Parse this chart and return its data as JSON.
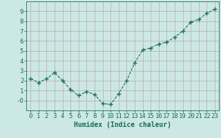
{
  "x": [
    0,
    1,
    2,
    3,
    4,
    5,
    6,
    7,
    8,
    9,
    10,
    11,
    12,
    13,
    14,
    15,
    16,
    17,
    18,
    19,
    20,
    21,
    22,
    23
  ],
  "y": [
    2.2,
    1.8,
    2.2,
    2.8,
    2.0,
    1.1,
    0.5,
    0.9,
    0.6,
    -0.3,
    -0.4,
    0.7,
    2.0,
    3.8,
    5.1,
    5.3,
    5.7,
    5.9,
    6.4,
    7.0,
    7.9,
    8.2,
    8.8,
    9.2
  ],
  "xlabel": "Humidex (Indice chaleur)",
  "ylim": [
    -1,
    10
  ],
  "xlim": [
    -0.5,
    23.5
  ],
  "yticks": [
    0,
    1,
    2,
    3,
    4,
    5,
    6,
    7,
    8,
    9
  ],
  "ytick_labels": [
    "-0",
    "1",
    "2",
    "3",
    "4",
    "5",
    "6",
    "7",
    "8",
    "9"
  ],
  "xticks": [
    0,
    1,
    2,
    3,
    4,
    5,
    6,
    7,
    8,
    9,
    10,
    11,
    12,
    13,
    14,
    15,
    16,
    17,
    18,
    19,
    20,
    21,
    22,
    23
  ],
  "line_color": "#1a6b5a",
  "marker": "+",
  "bg_color": "#cce8e4",
  "grid_color": "#b8a8a8",
  "axis_color": "#1a6b5a",
  "tick_label_color": "#1a6b5a",
  "xlabel_color": "#1a6b5a",
  "xlabel_fontsize": 7,
  "tick_fontsize": 6.5
}
